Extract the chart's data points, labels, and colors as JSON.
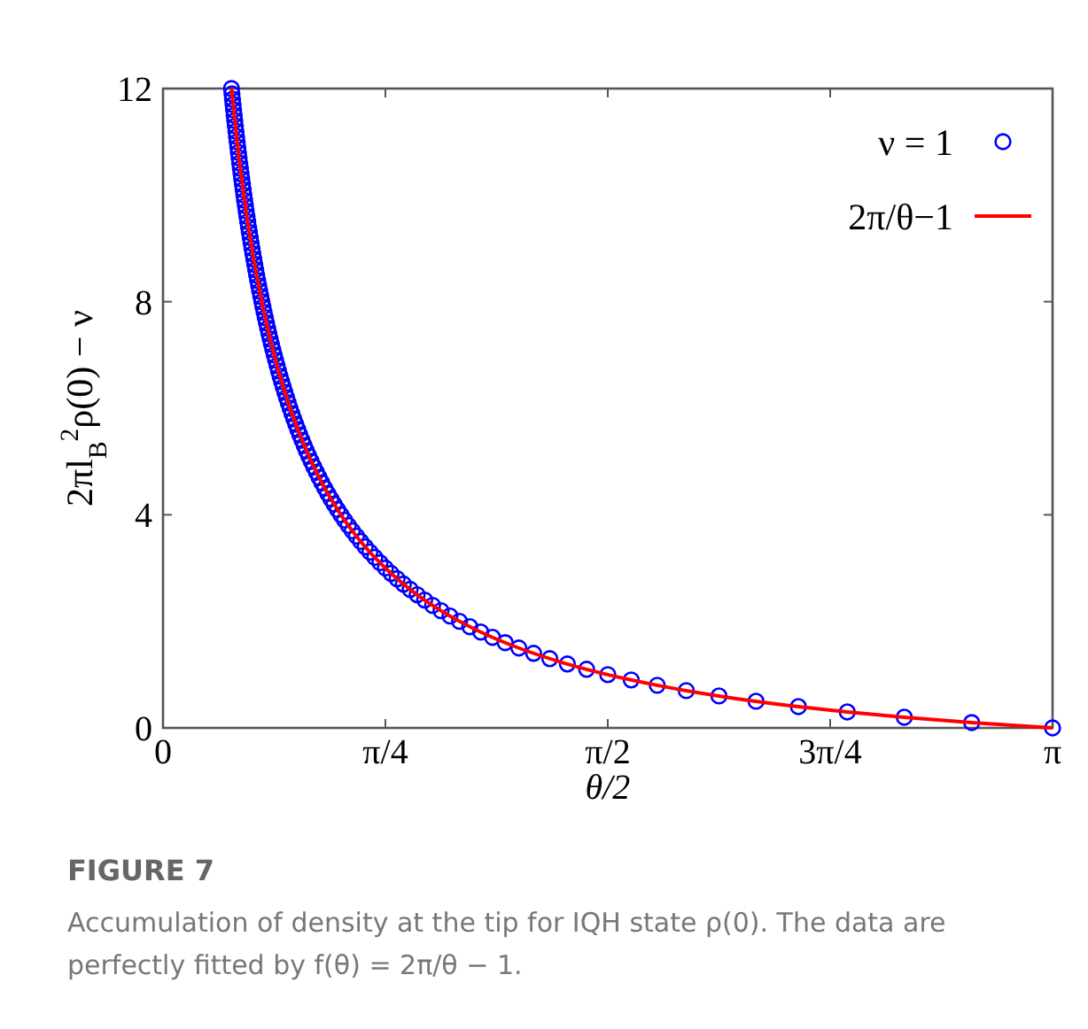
{
  "chart_data": {
    "type": "scatter",
    "xlabel": "θ/2",
    "ylabel": "2πl$_{B}$$^{2}$ρ(0) − ν",
    "xlim": [
      0,
      3.1416
    ],
    "ylim": [
      0,
      12
    ],
    "xticks": [
      0,
      {
        "value": 0.7854,
        "label": "π/4"
      },
      {
        "value": 1.5708,
        "label": "π/2"
      },
      {
        "value": 2.3562,
        "label": "3π/4"
      },
      {
        "value": 3.1416,
        "label": "π"
      }
    ],
    "yticks": [
      0,
      4,
      8,
      12
    ],
    "grid": false,
    "legend": "top right",
    "marker": "circle",
    "annotations": [
      "FIGURE 7",
      "Accumulation of density at the tip for IQH state ρ(0). The data are perfectly fitted by f(θ) = 2π/θ − 1."
    ],
    "series": [
      {
        "name": "ν = 1",
        "color": "#0000ff",
        "x": [
          0.2417,
          0.2435,
          0.2454,
          0.2474,
          0.2493,
          0.2513,
          0.2533,
          0.2554,
          0.2575,
          0.2596,
          0.2618,
          0.264,
          0.2662,
          0.2685,
          0.2708,
          0.2732,
          0.2756,
          0.278,
          0.2805,
          0.283,
          0.2856,
          0.2882,
          0.2909,
          0.2936,
          0.2964,
          0.2992,
          0.3021,
          0.305,
          0.308,
          0.311,
          0.3142,
          0.3173,
          0.3206,
          0.3239,
          0.3272,
          0.3307,
          0.3342,
          0.3378,
          0.3415,
          0.3452,
          0.3491,
          0.353,
          0.357,
          0.3611,
          0.3653,
          0.3696,
          0.374,
          0.3785,
          0.3831,
          0.3879,
          0.3927,
          0.3977,
          0.4028,
          0.408,
          0.4134,
          0.4189,
          0.4245,
          0.4304,
          0.4363,
          0.4425,
          0.4488,
          0.4553,
          0.462,
          0.4689,
          0.476,
          0.4833,
          0.4909,
          0.4987,
          0.5067,
          0.515,
          0.5236,
          0.5325,
          0.5417,
          0.5512,
          0.561,
          0.5712,
          0.5818,
          0.5928,
          0.6042,
          0.616,
          0.6283,
          0.6411,
          0.6545,
          0.6684,
          0.683,
          0.6981,
          0.714,
          0.7306,
          0.748,
          0.7662,
          0.7854,
          0.8055,
          0.8267,
          0.8491,
          0.8727,
          0.8976,
          0.924,
          0.952,
          0.9817,
          1.0134,
          1.0472,
          1.0833,
          1.122,
          1.1636,
          1.2083,
          1.2566,
          1.309,
          1.3659,
          1.428,
          1.496,
          1.5708,
          1.6535,
          1.7453,
          1.848,
          1.9635,
          2.0944,
          2.244,
          2.4166,
          2.618,
          2.856,
          3.1416
        ],
        "values": [
          12,
          11.9,
          11.8,
          11.7,
          11.6,
          11.5,
          11.4,
          11.3,
          11.2,
          11.1,
          11,
          10.9,
          10.8,
          10.7,
          10.6,
          10.5,
          10.4,
          10.3,
          10.2,
          10.1,
          10,
          9.9,
          9.8,
          9.7,
          9.6,
          9.5,
          9.4,
          9.3,
          9.2,
          9.1,
          9,
          8.9,
          8.8,
          8.7,
          8.6,
          8.5,
          8.4,
          8.3,
          8.2,
          8.1,
          8,
          7.9,
          7.8,
          7.7,
          7.6,
          7.5,
          7.4,
          7.3,
          7.2,
          7.1,
          7,
          6.9,
          6.8,
          6.7,
          6.6,
          6.5,
          6.4,
          6.3,
          6.2,
          6.1,
          6,
          5.9,
          5.8,
          5.7,
          5.6,
          5.5,
          5.4,
          5.3,
          5.2,
          5.1,
          5,
          4.9,
          4.8,
          4.7,
          4.6,
          4.5,
          4.4,
          4.3,
          4.2,
          4.1,
          4,
          3.9,
          3.8,
          3.7,
          3.6,
          3.5,
          3.4,
          3.3,
          3.2,
          3.1,
          3,
          2.9,
          2.8,
          2.7,
          2.6,
          2.5,
          2.4,
          2.3,
          2.2,
          2.1,
          2,
          1.9,
          1.8,
          1.7,
          1.6,
          1.5,
          1.4,
          1.3,
          1.2,
          1.1,
          1,
          0.9,
          0.8,
          0.7,
          0.6,
          0.5,
          0.4,
          0.3,
          0.2,
          0.1,
          0
        ]
      },
      {
        "name": "2π/θ−1",
        "type": "line",
        "color": "#ff0000",
        "marker": "none",
        "line_style": "solid",
        "x": [
          0.2417,
          0.2618,
          0.2856,
          0.3142,
          0.3491,
          0.3927,
          0.4488,
          0.5236,
          0.5712,
          0.6283,
          0.6981,
          0.7854,
          0.8727,
          0.9817,
          1.122,
          1.2566,
          1.428,
          1.5708,
          1.7453,
          1.9635,
          2.0944,
          2.244,
          2.4166,
          2.618,
          2.856,
          3.1416
        ],
        "values": [
          12,
          11,
          10,
          9,
          8,
          7,
          6,
          5,
          4.5,
          4,
          3.5,
          3,
          2.6,
          2.2,
          1.8,
          1.5,
          1.2,
          1,
          0.8,
          0.6,
          0.5,
          0.4,
          0.3,
          0.2,
          0.1,
          0
        ]
      }
    ]
  }
}
